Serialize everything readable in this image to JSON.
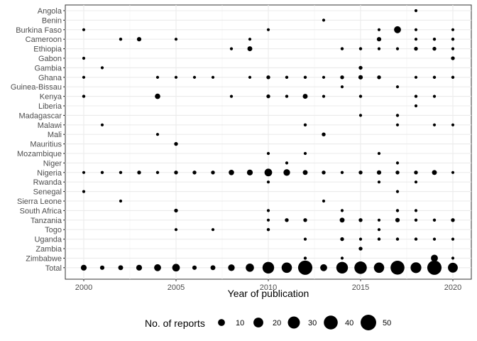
{
  "chart_data": {
    "type": "scatter",
    "xlabel": "Year of publication",
    "ylabel": "",
    "x_ticks": [
      2000,
      2005,
      2010,
      2015,
      2020
    ],
    "xlim": [
      1999.5,
      2020.5
    ],
    "categories": [
      "Angola",
      "Benin",
      "Burkina Faso",
      "Cameroon",
      "Ethiopia",
      "Gabon",
      "Gambia",
      "Ghana",
      "Guinea-Bissau",
      "Kenya",
      "Liberia",
      "Madagascar",
      "Malawi",
      "Mali",
      "Mauritius",
      "Mozambique",
      "Niger",
      "Nigeria",
      "Rwanda",
      "Senegal",
      "Sierra Leone",
      "South Africa",
      "Tanzania",
      "Togo",
      "Uganda",
      "Zambia",
      "Zimbabwe",
      "Total"
    ],
    "legend": {
      "title": "No. of reports",
      "position": "bottom",
      "entries": [
        {
          "label": "10",
          "value": 10
        },
        {
          "label": "20",
          "value": 20
        },
        {
          "label": "30",
          "value": 30
        },
        {
          "label": "40",
          "value": 40
        },
        {
          "label": "50",
          "value": 50
        }
      ]
    },
    "points": [
      {
        "country": "Angola",
        "year": 2018,
        "n": 1
      },
      {
        "country": "Benin",
        "year": 2013,
        "n": 1
      },
      {
        "country": "Burkina Faso",
        "year": 2000,
        "n": 1
      },
      {
        "country": "Burkina Faso",
        "year": 2010,
        "n": 1
      },
      {
        "country": "Burkina Faso",
        "year": 2016,
        "n": 1
      },
      {
        "country": "Burkina Faso",
        "year": 2017,
        "n": 10
      },
      {
        "country": "Burkina Faso",
        "year": 2018,
        "n": 1
      },
      {
        "country": "Burkina Faso",
        "year": 2020,
        "n": 1
      },
      {
        "country": "Cameroon",
        "year": 2002,
        "n": 2
      },
      {
        "country": "Cameroon",
        "year": 2003,
        "n": 4
      },
      {
        "country": "Cameroon",
        "year": 2005,
        "n": 1
      },
      {
        "country": "Cameroon",
        "year": 2009,
        "n": 1
      },
      {
        "country": "Cameroon",
        "year": 2016,
        "n": 4
      },
      {
        "country": "Cameroon",
        "year": 2018,
        "n": 1
      },
      {
        "country": "Cameroon",
        "year": 2019,
        "n": 2
      },
      {
        "country": "Cameroon",
        "year": 2020,
        "n": 2
      },
      {
        "country": "Ethiopia",
        "year": 2008,
        "n": 1
      },
      {
        "country": "Ethiopia",
        "year": 2009,
        "n": 5
      },
      {
        "country": "Ethiopia",
        "year": 2014,
        "n": 2
      },
      {
        "country": "Ethiopia",
        "year": 2015,
        "n": 2
      },
      {
        "country": "Ethiopia",
        "year": 2016,
        "n": 1
      },
      {
        "country": "Ethiopia",
        "year": 2017,
        "n": 1
      },
      {
        "country": "Ethiopia",
        "year": 2018,
        "n": 3
      },
      {
        "country": "Ethiopia",
        "year": 2019,
        "n": 3
      },
      {
        "country": "Ethiopia",
        "year": 2020,
        "n": 1
      },
      {
        "country": "Gabon",
        "year": 2000,
        "n": 1
      },
      {
        "country": "Gabon",
        "year": 2020,
        "n": 3
      },
      {
        "country": "Gambia",
        "year": 2001,
        "n": 1
      },
      {
        "country": "Gambia",
        "year": 2015,
        "n": 3
      },
      {
        "country": "Ghana",
        "year": 2000,
        "n": 1
      },
      {
        "country": "Ghana",
        "year": 2004,
        "n": 1
      },
      {
        "country": "Ghana",
        "year": 2005,
        "n": 1
      },
      {
        "country": "Ghana",
        "year": 2006,
        "n": 1
      },
      {
        "country": "Ghana",
        "year": 2007,
        "n": 1
      },
      {
        "country": "Ghana",
        "year": 2009,
        "n": 1
      },
      {
        "country": "Ghana",
        "year": 2010,
        "n": 3
      },
      {
        "country": "Ghana",
        "year": 2011,
        "n": 2
      },
      {
        "country": "Ghana",
        "year": 2012,
        "n": 2
      },
      {
        "country": "Ghana",
        "year": 2013,
        "n": 1
      },
      {
        "country": "Ghana",
        "year": 2014,
        "n": 3
      },
      {
        "country": "Ghana",
        "year": 2015,
        "n": 4
      },
      {
        "country": "Ghana",
        "year": 2016,
        "n": 3
      },
      {
        "country": "Ghana",
        "year": 2018,
        "n": 1
      },
      {
        "country": "Ghana",
        "year": 2019,
        "n": 2
      },
      {
        "country": "Ghana",
        "year": 2020,
        "n": 2
      },
      {
        "country": "Guinea-Bissau",
        "year": 2014,
        "n": 1
      },
      {
        "country": "Guinea-Bissau",
        "year": 2017,
        "n": 1
      },
      {
        "country": "Kenya",
        "year": 2000,
        "n": 2
      },
      {
        "country": "Kenya",
        "year": 2004,
        "n": 6
      },
      {
        "country": "Kenya",
        "year": 2008,
        "n": 1
      },
      {
        "country": "Kenya",
        "year": 2010,
        "n": 3
      },
      {
        "country": "Kenya",
        "year": 2011,
        "n": 2
      },
      {
        "country": "Kenya",
        "year": 2012,
        "n": 5
      },
      {
        "country": "Kenya",
        "year": 2013,
        "n": 1
      },
      {
        "country": "Kenya",
        "year": 2015,
        "n": 2
      },
      {
        "country": "Kenya",
        "year": 2018,
        "n": 2
      },
      {
        "country": "Kenya",
        "year": 2019,
        "n": 1
      },
      {
        "country": "Liberia",
        "year": 2018,
        "n": 1
      },
      {
        "country": "Madagascar",
        "year": 2015,
        "n": 1
      },
      {
        "country": "Madagascar",
        "year": 2017,
        "n": 2
      },
      {
        "country": "Malawi",
        "year": 2001,
        "n": 1
      },
      {
        "country": "Malawi",
        "year": 2012,
        "n": 2
      },
      {
        "country": "Malawi",
        "year": 2017,
        "n": 1
      },
      {
        "country": "Malawi",
        "year": 2019,
        "n": 1
      },
      {
        "country": "Malawi",
        "year": 2020,
        "n": 1
      },
      {
        "country": "Mali",
        "year": 2004,
        "n": 1
      },
      {
        "country": "Mali",
        "year": 2013,
        "n": 3
      },
      {
        "country": "Mauritius",
        "year": 2005,
        "n": 3
      },
      {
        "country": "Mozambique",
        "year": 2010,
        "n": 1
      },
      {
        "country": "Mozambique",
        "year": 2012,
        "n": 1
      },
      {
        "country": "Mozambique",
        "year": 2016,
        "n": 1
      },
      {
        "country": "Niger",
        "year": 2011,
        "n": 1
      },
      {
        "country": "Niger",
        "year": 2017,
        "n": 1
      },
      {
        "country": "Nigeria",
        "year": 2000,
        "n": 1
      },
      {
        "country": "Nigeria",
        "year": 2001,
        "n": 2
      },
      {
        "country": "Nigeria",
        "year": 2002,
        "n": 2
      },
      {
        "country": "Nigeria",
        "year": 2003,
        "n": 3
      },
      {
        "country": "Nigeria",
        "year": 2004,
        "n": 2
      },
      {
        "country": "Nigeria",
        "year": 2005,
        "n": 3
      },
      {
        "country": "Nigeria",
        "year": 2006,
        "n": 3
      },
      {
        "country": "Nigeria",
        "year": 2007,
        "n": 3
      },
      {
        "country": "Nigeria",
        "year": 2008,
        "n": 6
      },
      {
        "country": "Nigeria",
        "year": 2009,
        "n": 7
      },
      {
        "country": "Nigeria",
        "year": 2010,
        "n": 12
      },
      {
        "country": "Nigeria",
        "year": 2011,
        "n": 9
      },
      {
        "country": "Nigeria",
        "year": 2012,
        "n": 5
      },
      {
        "country": "Nigeria",
        "year": 2013,
        "n": 3
      },
      {
        "country": "Nigeria",
        "year": 2014,
        "n": 2
      },
      {
        "country": "Nigeria",
        "year": 2015,
        "n": 3
      },
      {
        "country": "Nigeria",
        "year": 2016,
        "n": 4
      },
      {
        "country": "Nigeria",
        "year": 2017,
        "n": 3
      },
      {
        "country": "Nigeria",
        "year": 2018,
        "n": 3
      },
      {
        "country": "Nigeria",
        "year": 2019,
        "n": 5
      },
      {
        "country": "Nigeria",
        "year": 2020,
        "n": 1
      },
      {
        "country": "Rwanda",
        "year": 2010,
        "n": 1
      },
      {
        "country": "Rwanda",
        "year": 2016,
        "n": 1
      },
      {
        "country": "Rwanda",
        "year": 2018,
        "n": 1
      },
      {
        "country": "Senegal",
        "year": 2000,
        "n": 1
      },
      {
        "country": "Senegal",
        "year": 2017,
        "n": 1
      },
      {
        "country": "Sierra Leone",
        "year": 2002,
        "n": 1
      },
      {
        "country": "Sierra Leone",
        "year": 2013,
        "n": 1
      },
      {
        "country": "South Africa",
        "year": 2005,
        "n": 3
      },
      {
        "country": "South Africa",
        "year": 2010,
        "n": 1
      },
      {
        "country": "South Africa",
        "year": 2014,
        "n": 1
      },
      {
        "country": "South Africa",
        "year": 2017,
        "n": 2
      },
      {
        "country": "South Africa",
        "year": 2018,
        "n": 1
      },
      {
        "country": "Tanzania",
        "year": 2010,
        "n": 1
      },
      {
        "country": "Tanzania",
        "year": 2011,
        "n": 3
      },
      {
        "country": "Tanzania",
        "year": 2012,
        "n": 3
      },
      {
        "country": "Tanzania",
        "year": 2014,
        "n": 5
      },
      {
        "country": "Tanzania",
        "year": 2015,
        "n": 3
      },
      {
        "country": "Tanzania",
        "year": 2016,
        "n": 1
      },
      {
        "country": "Tanzania",
        "year": 2017,
        "n": 4
      },
      {
        "country": "Tanzania",
        "year": 2018,
        "n": 2
      },
      {
        "country": "Tanzania",
        "year": 2019,
        "n": 2
      },
      {
        "country": "Tanzania",
        "year": 2020,
        "n": 3
      },
      {
        "country": "Togo",
        "year": 2005,
        "n": 1
      },
      {
        "country": "Togo",
        "year": 2007,
        "n": 1
      },
      {
        "country": "Togo",
        "year": 2010,
        "n": 2
      },
      {
        "country": "Togo",
        "year": 2016,
        "n": 1
      },
      {
        "country": "Uganda",
        "year": 2012,
        "n": 1
      },
      {
        "country": "Uganda",
        "year": 2014,
        "n": 3
      },
      {
        "country": "Uganda",
        "year": 2015,
        "n": 1
      },
      {
        "country": "Uganda",
        "year": 2016,
        "n": 2
      },
      {
        "country": "Uganda",
        "year": 2017,
        "n": 2
      },
      {
        "country": "Uganda",
        "year": 2018,
        "n": 2
      },
      {
        "country": "Uganda",
        "year": 2019,
        "n": 1
      },
      {
        "country": "Uganda",
        "year": 2020,
        "n": 1
      },
      {
        "country": "Zambia",
        "year": 2015,
        "n": 3
      },
      {
        "country": "Zimbabwe",
        "year": 2012,
        "n": 2
      },
      {
        "country": "Zimbabwe",
        "year": 2014,
        "n": 1
      },
      {
        "country": "Zimbabwe",
        "year": 2019,
        "n": 10
      },
      {
        "country": "Zimbabwe",
        "year": 2020,
        "n": 1
      },
      {
        "country": "Total",
        "year": 2000,
        "n": 7
      },
      {
        "country": "Total",
        "year": 2001,
        "n": 4
      },
      {
        "country": "Total",
        "year": 2002,
        "n": 5
      },
      {
        "country": "Total",
        "year": 2003,
        "n": 7
      },
      {
        "country": "Total",
        "year": 2004,
        "n": 10
      },
      {
        "country": "Total",
        "year": 2005,
        "n": 12
      },
      {
        "country": "Total",
        "year": 2006,
        "n": 4
      },
      {
        "country": "Total",
        "year": 2007,
        "n": 5
      },
      {
        "country": "Total",
        "year": 2008,
        "n": 9
      },
      {
        "country": "Total",
        "year": 2009,
        "n": 14
      },
      {
        "country": "Total",
        "year": 2010,
        "n": 28
      },
      {
        "country": "Total",
        "year": 2011,
        "n": 22
      },
      {
        "country": "Total",
        "year": 2012,
        "n": 42
      },
      {
        "country": "Total",
        "year": 2013,
        "n": 10
      },
      {
        "country": "Total",
        "year": 2014,
        "n": 28
      },
      {
        "country": "Total",
        "year": 2015,
        "n": 32
      },
      {
        "country": "Total",
        "year": 2016,
        "n": 22
      },
      {
        "country": "Total",
        "year": 2017,
        "n": 40
      },
      {
        "country": "Total",
        "year": 2018,
        "n": 24
      },
      {
        "country": "Total",
        "year": 2019,
        "n": 42
      },
      {
        "country": "Total",
        "year": 2020,
        "n": 20
      }
    ]
  }
}
